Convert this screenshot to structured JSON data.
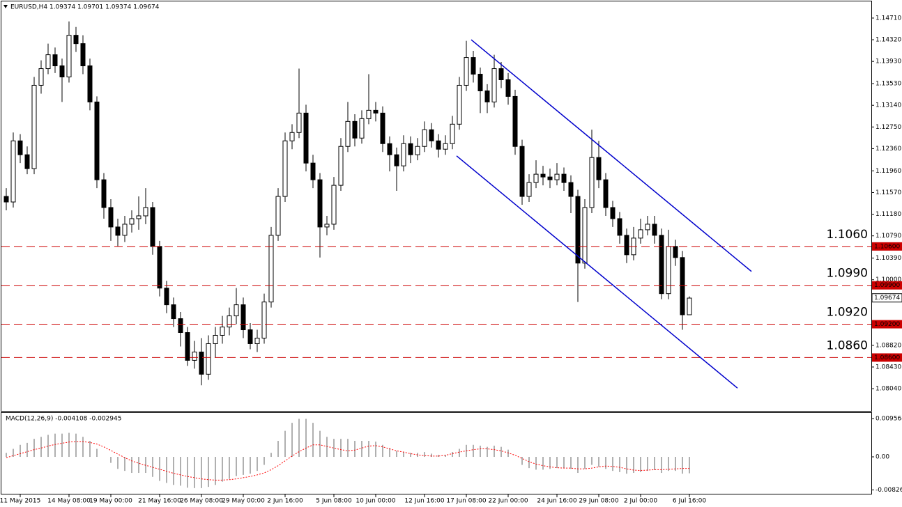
{
  "chart_data": [
    {
      "type": "candlestick",
      "title": "EURUSD,H4  1.09374 1.09701 1.09374 1.09674",
      "categories": [
        null,
        null,
        "11 May 2015",
        null,
        null,
        null,
        null,
        null,
        null,
        "14 May 08:00",
        null,
        null,
        null,
        null,
        null,
        "19 May 00:00",
        null,
        null,
        null,
        null,
        null,
        null,
        "21 May 16:00",
        null,
        null,
        null,
        null,
        null,
        "26 May 08:00",
        null,
        null,
        null,
        null,
        null,
        "29 May 00:00",
        null,
        null,
        null,
        null,
        null,
        "2 Jun 16:00",
        null,
        null,
        null,
        null,
        null,
        null,
        "5 Jun 08:00",
        null,
        null,
        null,
        null,
        null,
        "10 Jun 00:00",
        null,
        null,
        null,
        null,
        null,
        null,
        "12 Jun 16:00",
        null,
        null,
        null,
        null,
        null,
        "17 Jun 08:00",
        null,
        null,
        null,
        null,
        null,
        "22 Jun 00:00",
        null,
        null,
        null,
        null,
        null,
        null,
        "24 Jun 16:00",
        null,
        null,
        null,
        null,
        null,
        "29 Jun 08:00",
        null,
        null,
        null,
        null,
        null,
        "2 Jul 00:00",
        null,
        null,
        null,
        null,
        null,
        null,
        "6 Jul 16:00"
      ],
      "ohlc": [
        [
          1.115,
          1.1165,
          1.1125,
          1.114
        ],
        [
          1.114,
          1.1265,
          1.113,
          1.125
        ],
        [
          1.125,
          1.1262,
          1.121,
          1.1225
        ],
        [
          1.1225,
          1.124,
          1.119,
          1.12
        ],
        [
          1.12,
          1.1365,
          1.119,
          1.135
        ],
        [
          1.135,
          1.1395,
          1.1335,
          1.138
        ],
        [
          1.138,
          1.1425,
          1.137,
          1.1405
        ],
        [
          1.1405,
          1.1418,
          1.1372,
          1.1385
        ],
        [
          1.1385,
          1.1398,
          1.132,
          1.1365
        ],
        [
          1.1365,
          1.1465,
          1.1355,
          1.144
        ],
        [
          1.144,
          1.1455,
          1.141,
          1.1425
        ],
        [
          1.1425,
          1.144,
          1.137,
          1.1385
        ],
        [
          1.1385,
          1.1398,
          1.1305,
          1.132
        ],
        [
          1.132,
          1.133,
          1.1165,
          1.118
        ],
        [
          1.118,
          1.1192,
          1.111,
          1.113
        ],
        [
          1.113,
          1.1145,
          1.107,
          1.1095
        ],
        [
          1.1095,
          1.111,
          1.106,
          1.108
        ],
        [
          1.108,
          1.1115,
          1.1068,
          1.11
        ],
        [
          1.11,
          1.1125,
          1.1085,
          1.111
        ],
        [
          1.111,
          1.115,
          1.109,
          1.1115
        ],
        [
          1.1115,
          1.1165,
          1.11,
          1.113
        ],
        [
          1.113,
          1.114,
          1.1045,
          1.106
        ],
        [
          1.106,
          1.107,
          1.097,
          1.0985
        ],
        [
          1.0985,
          1.0998,
          1.094,
          1.0955
        ],
        [
          1.0955,
          1.0968,
          1.0915,
          1.093
        ],
        [
          1.093,
          1.0942,
          1.088,
          1.0905
        ],
        [
          1.0905,
          1.0915,
          1.0845,
          1.0855
        ],
        [
          1.0855,
          1.089,
          1.084,
          1.087
        ],
        [
          1.087,
          1.0895,
          1.081,
          1.083
        ],
        [
          1.083,
          1.09,
          1.082,
          1.0885
        ],
        [
          1.0885,
          1.0915,
          1.086,
          1.09
        ],
        [
          1.09,
          1.0935,
          1.0885,
          1.0915
        ],
        [
          1.0915,
          1.095,
          1.09,
          1.0935
        ],
        [
          1.0935,
          1.0985,
          1.092,
          1.0955
        ],
        [
          1.0955,
          1.0968,
          1.0895,
          1.091
        ],
        [
          1.091,
          1.0922,
          1.0875,
          1.0885
        ],
        [
          1.0885,
          1.091,
          1.087,
          1.0895
        ],
        [
          1.0895,
          1.0975,
          1.0885,
          1.096
        ],
        [
          1.096,
          1.1095,
          1.095,
          1.108
        ],
        [
          1.108,
          1.1165,
          1.107,
          1.115
        ],
        [
          1.115,
          1.1265,
          1.114,
          1.125
        ],
        [
          1.125,
          1.128,
          1.1235,
          1.1265
        ],
        [
          1.1265,
          1.138,
          1.1255,
          1.13
        ],
        [
          1.13,
          1.1315,
          1.1195,
          1.121
        ],
        [
          1.121,
          1.1225,
          1.1165,
          1.118
        ],
        [
          1.118,
          1.1192,
          1.104,
          1.1095
        ],
        [
          1.1095,
          1.1115,
          1.108,
          1.11
        ],
        [
          1.11,
          1.1185,
          1.109,
          1.117
        ],
        [
          1.117,
          1.1255,
          1.116,
          1.124
        ],
        [
          1.124,
          1.132,
          1.123,
          1.1285
        ],
        [
          1.1285,
          1.1298,
          1.124,
          1.1255
        ],
        [
          1.1255,
          1.1305,
          1.1245,
          1.129
        ],
        [
          1.129,
          1.137,
          1.128,
          1.1305
        ],
        [
          1.1305,
          1.132,
          1.1285,
          1.13
        ],
        [
          1.13,
          1.1312,
          1.123,
          1.1245
        ],
        [
          1.1245,
          1.1258,
          1.1195,
          1.1225
        ],
        [
          1.1225,
          1.1238,
          1.116,
          1.1205
        ],
        [
          1.1205,
          1.126,
          1.1195,
          1.1245
        ],
        [
          1.1245,
          1.1258,
          1.121,
          1.1225
        ],
        [
          1.1225,
          1.1255,
          1.1215,
          1.124
        ],
        [
          1.124,
          1.1285,
          1.123,
          1.127
        ],
        [
          1.127,
          1.1282,
          1.1238,
          1.125
        ],
        [
          1.125,
          1.1262,
          1.122,
          1.1235
        ],
        [
          1.1235,
          1.126,
          1.1225,
          1.1245
        ],
        [
          1.1245,
          1.1295,
          1.1235,
          1.128
        ],
        [
          1.128,
          1.1365,
          1.127,
          1.135
        ],
        [
          1.135,
          1.143,
          1.134,
          1.14
        ],
        [
          1.14,
          1.1412,
          1.1355,
          1.137
        ],
        [
          1.137,
          1.1382,
          1.13,
          1.134
        ],
        [
          1.134,
          1.1352,
          1.13,
          1.132
        ],
        [
          1.132,
          1.1405,
          1.131,
          1.138
        ],
        [
          1.138,
          1.1392,
          1.1345,
          1.136
        ],
        [
          1.136,
          1.1372,
          1.1315,
          1.133
        ],
        [
          1.133,
          1.1342,
          1.1225,
          1.124
        ],
        [
          1.124,
          1.1252,
          1.1135,
          1.115
        ],
        [
          1.115,
          1.119,
          1.114,
          1.1175
        ],
        [
          1.1175,
          1.1215,
          1.1165,
          1.119
        ],
        [
          1.119,
          1.1205,
          1.117,
          1.1185
        ],
        [
          1.1185,
          1.12,
          1.1165,
          1.118
        ],
        [
          1.118,
          1.121,
          1.117,
          1.119
        ],
        [
          1.119,
          1.1202,
          1.116,
          1.1175
        ],
        [
          1.1175,
          1.1188,
          1.112,
          1.115
        ],
        [
          1.115,
          1.1162,
          1.096,
          1.103
        ],
        [
          1.103,
          1.1145,
          1.102,
          1.113
        ],
        [
          1.113,
          1.127,
          1.112,
          1.122
        ],
        [
          1.122,
          1.125,
          1.1165,
          1.118
        ],
        [
          1.118,
          1.1192,
          1.1115,
          1.113
        ],
        [
          1.113,
          1.1142,
          1.1095,
          1.111
        ],
        [
          1.111,
          1.1122,
          1.1065,
          1.108
        ],
        [
          1.108,
          1.1092,
          1.103,
          1.1045
        ],
        [
          1.1045,
          1.1095,
          1.1035,
          1.1075
        ],
        [
          1.1075,
          1.111,
          1.1065,
          1.109
        ],
        [
          1.109,
          1.1115,
          1.108,
          1.11
        ],
        [
          1.11,
          1.1115,
          1.1065,
          1.108
        ],
        [
          1.108,
          1.1092,
          1.0965,
          1.0975
        ],
        [
          1.0975,
          1.109,
          1.0965,
          1.106
        ],
        [
          1.106,
          1.1072,
          1.1025,
          1.104
        ],
        [
          1.104,
          1.1052,
          1.091,
          1.0937
        ],
        [
          1.0937,
          1.097,
          1.0937,
          1.0967
        ]
      ],
      "color": "#000000",
      "ylim": [
        1.0764,
        1.1501
      ],
      "yticks": [
        {
          "value": 1.1471,
          "label": "1.14710"
        },
        {
          "value": 1.1432,
          "label": "1.14320"
        },
        {
          "value": 1.1393,
          "label": "1.13930"
        },
        {
          "value": 1.1353,
          "label": "1.13530"
        },
        {
          "value": 1.1314,
          "label": "1.13140"
        },
        {
          "value": 1.1275,
          "label": "1.12750"
        },
        {
          "value": 1.1236,
          "label": "1.12360"
        },
        {
          "value": 1.1196,
          "label": "1.11960"
        },
        {
          "value": 1.1157,
          "label": "1.11570"
        },
        {
          "value": 1.1118,
          "label": "1.11180"
        },
        {
          "value": 1.1079,
          "label": "1.10790"
        },
        {
          "value": 1.1039,
          "label": "1.10390"
        },
        {
          "value": 1.1,
          "label": "1.10000"
        },
        {
          "value": 1.0882,
          "label": "1.08820"
        },
        {
          "value": 1.0843,
          "label": "1.08430"
        },
        {
          "value": 1.0804,
          "label": "1.08040"
        }
      ],
      "levels": [
        {
          "value": 1.106,
          "label": "1.1060",
          "price_label": "1.10600"
        },
        {
          "value": 1.099,
          "label": "1.0990",
          "price_label": "1.09900"
        },
        {
          "value": 1.092,
          "label": "1.0920",
          "price_label": "1.09200"
        },
        {
          "value": 1.086,
          "label": "1.0860",
          "price_label": "1.08600"
        }
      ],
      "level_color": "#cc0000",
      "level_label_color": "#f26522",
      "last_price": 1.09674,
      "trendline_color": "#0000cc",
      "trendlines": [
        [
          [
            66.7,
            1.1432
          ],
          [
            106.9,
            1.1015
          ]
        ],
        [
          [
            64.6,
            1.1223
          ],
          [
            104.9,
            1.0805
          ]
        ]
      ]
    },
    {
      "type": "macd",
      "title": "MACD(12,26,9) -0.004108 -0.002945",
      "histogram": [
        0.001,
        0.002,
        0.003,
        0.0035,
        0.0045,
        0.005,
        0.0055,
        0.0058,
        0.0058,
        0.006,
        0.0058,
        0.005,
        0.004,
        0.002,
        0.0,
        -0.0015,
        -0.003,
        -0.0035,
        -0.004,
        -0.004,
        -0.004,
        -0.005,
        -0.006,
        -0.0065,
        -0.007,
        -0.0072,
        -0.0077,
        -0.0078,
        -0.0078,
        -0.0075,
        -0.007,
        -0.0062,
        -0.0055,
        -0.0048,
        -0.0045,
        -0.0042,
        -0.0035,
        -0.002,
        0.001,
        0.004,
        0.0065,
        0.0085,
        0.0095,
        0.0095,
        0.0085,
        0.0065,
        0.005,
        0.0045,
        0.0045,
        0.0045,
        0.004,
        0.004,
        0.004,
        0.0038,
        0.003,
        0.0022,
        0.0015,
        0.0012,
        0.001,
        0.001,
        0.0012,
        0.0008,
        0.0005,
        0.0005,
        0.0012,
        0.002,
        0.003,
        0.003,
        0.0028,
        0.0025,
        0.0028,
        0.0025,
        0.0018,
        0.0,
        -0.002,
        -0.0028,
        -0.0032,
        -0.0032,
        -0.003,
        -0.0028,
        -0.0028,
        -0.003,
        -0.004,
        -0.003,
        -0.002,
        -0.0025,
        -0.003,
        -0.0035,
        -0.0038,
        -0.0042,
        -0.004,
        -0.0038,
        -0.0035,
        -0.0033,
        -0.004,
        -0.0035,
        -0.0035,
        -0.0042,
        -0.0041
      ],
      "signal": [
        -0.0002,
        0.0003,
        0.0008,
        0.0013,
        0.0018,
        0.0022,
        0.0027,
        0.0031,
        0.0034,
        0.0037,
        0.0038,
        0.0038,
        0.0036,
        0.0032,
        0.0025,
        0.0016,
        0.0007,
        -0.0002,
        -0.001,
        -0.0016,
        -0.0021,
        -0.0026,
        -0.0031,
        -0.0036,
        -0.0041,
        -0.0045,
        -0.0049,
        -0.0052,
        -0.0055,
        -0.0057,
        -0.0058,
        -0.0058,
        -0.0057,
        -0.0055,
        -0.0052,
        -0.0049,
        -0.0045,
        -0.004,
        -0.0032,
        -0.0022,
        -0.001,
        0.0002,
        0.0013,
        0.0022,
        0.003,
        0.003,
        0.0026,
        0.0022,
        0.0018,
        0.0015,
        0.0017,
        0.0022,
        0.0027,
        0.0028,
        0.0025,
        0.002,
        0.0015,
        0.0012,
        0.0008,
        0.0005,
        0.0003,
        0.0002,
        0.0002,
        0.0004,
        0.0008,
        0.0012,
        0.0015,
        0.0018,
        0.002,
        0.002,
        0.0018,
        0.0015,
        0.001,
        0.0004,
        -0.0004,
        -0.0012,
        -0.0018,
        -0.0022,
        -0.0025,
        -0.0027,
        -0.0028,
        -0.0028,
        -0.003,
        -0.003,
        -0.0028,
        -0.0025,
        -0.0023,
        -0.0024,
        -0.0026,
        -0.003,
        -0.0033,
        -0.0034,
        -0.0033,
        -0.0032,
        -0.0032,
        -0.0031,
        -0.003,
        -0.0029,
        -0.0029
      ],
      "histogram_color": "#b0b0b0",
      "signal_color": "#ff0000",
      "ylim": [
        -0.00939,
        0.01096
      ],
      "yticks": [
        0.009564,
        {
          "value": 0,
          "label": "0.00"
        },
        -0.008264
      ]
    }
  ]
}
